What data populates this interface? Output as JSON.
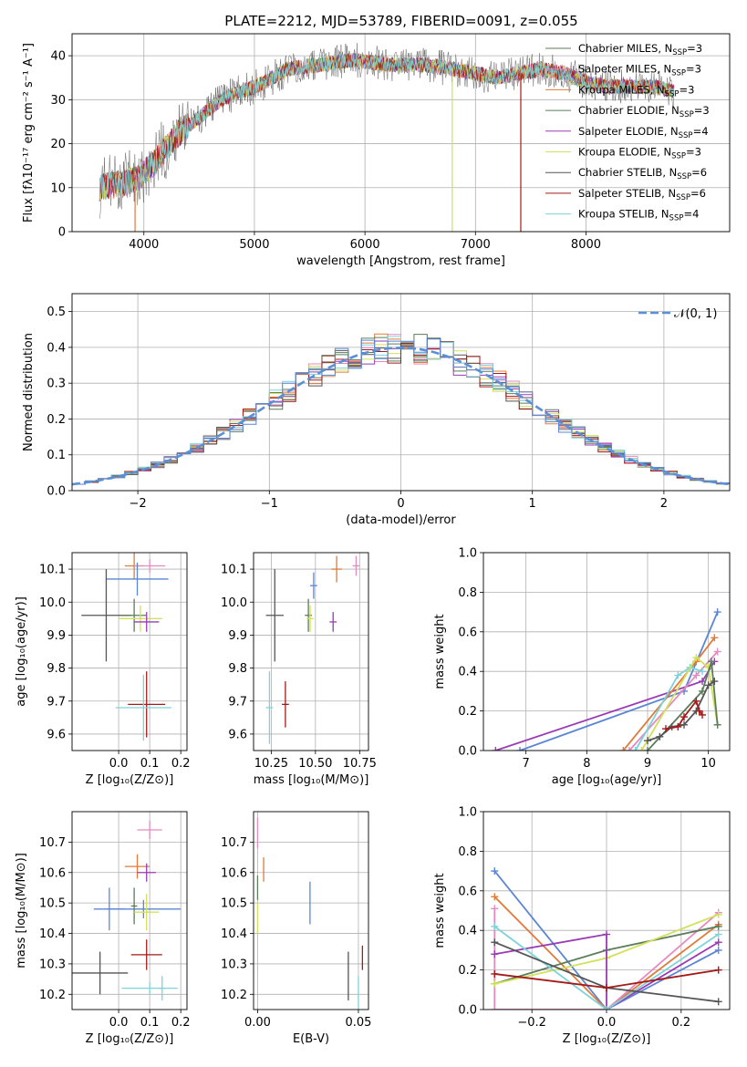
{
  "title": "PLATE=2212, MJD=53789, FIBERID=0091, z=0.055",
  "colors": {
    "Chabrier MILES": "#5a7d5a",
    "Salpeter MILES": "#b0b0b0",
    "Kroupa MILES": "#e07b39",
    "Chabrier ELODIE": "#5a7d5a",
    "Salpeter ELODIE": "#9a3bb5",
    "Kroupa ELODIE": "#d2e05a",
    "Chabrier STELIB": "#555555",
    "Salpeter STELIB": "#a31a1a",
    "Kroupa STELIB": "#7dd3d8",
    "pink": "#e58ac0",
    "blue": "#5b86d6",
    "normal": "#5b8fd6"
  },
  "chart_data": [
    {
      "id": "spectrum",
      "type": "line",
      "xlabel": "wavelength [Angstrom, rest frame]",
      "ylabel": "Flux [fλ10⁻¹⁷ erg cm⁻² s⁻¹ A⁻¹]",
      "xlim": [
        3350,
        9300
      ],
      "ylim": [
        0,
        45
      ],
      "xticks": [
        4000,
        5000,
        6000,
        7000,
        8000
      ],
      "yticks": [
        0,
        10,
        20,
        30,
        40
      ],
      "legend_position": "top-right",
      "continuum": [
        [
          3600,
          10
        ],
        [
          3800,
          11
        ],
        [
          3950,
          12
        ],
        [
          4100,
          16
        ],
        [
          4300,
          22
        ],
        [
          4500,
          26
        ],
        [
          4700,
          30
        ],
        [
          4900,
          32
        ],
        [
          5100,
          34
        ],
        [
          5300,
          37
        ],
        [
          5600,
          38
        ],
        [
          5900,
          39
        ],
        [
          6200,
          38
        ],
        [
          6500,
          38
        ],
        [
          6800,
          37
        ],
        [
          7000,
          36
        ],
        [
          7200,
          35
        ],
        [
          7400,
          36
        ],
        [
          7600,
          37
        ],
        [
          7800,
          36
        ],
        [
          8000,
          34
        ],
        [
          8200,
          33
        ],
        [
          8400,
          33
        ],
        [
          8600,
          33
        ],
        [
          8800,
          32
        ]
      ],
      "series": [
        {
          "name": "Chabrier MILES, N_SSP=3",
          "legend_base": "Chabrier MILES, N",
          "legend_sub": "SSP",
          "legend_tail": "=3",
          "color": "#5a7d5a"
        },
        {
          "name": "Salpeter MILES, N_SSP=3",
          "legend_base": "Salpeter MILES, N",
          "legend_sub": "SSP",
          "legend_tail": "=3",
          "color": "#e58ac0"
        },
        {
          "name": "Kroupa MILES, N_SSP=3",
          "legend_base": "Kroupa MILES, N",
          "legend_sub": "SSP",
          "legend_tail": "=3",
          "color": "#e07b39"
        },
        {
          "name": "Chabrier ELODIE, N_SSP=3",
          "legend_base": "Chabrier ELODIE, N",
          "legend_sub": "SSP",
          "legend_tail": "=3",
          "color": "#5a7d5a"
        },
        {
          "name": "Salpeter ELODIE, N_SSP=4",
          "legend_base": "Salpeter ELODIE, N",
          "legend_sub": "SSP",
          "legend_tail": "=4",
          "color": "#9a3bb5"
        },
        {
          "name": "Kroupa ELODIE, N_SSP=3",
          "legend_base": "Kroupa ELODIE, N",
          "legend_sub": "SSP",
          "legend_tail": "=3",
          "color": "#d2e05a"
        },
        {
          "name": "Chabrier STELIB, N_SSP=6",
          "legend_base": "Chabrier STELIB, N",
          "legend_sub": "SSP",
          "legend_tail": "=6",
          "color": "#555555"
        },
        {
          "name": "Salpeter STELIB, N_SSP=6",
          "legend_base": "Salpeter STELIB, N",
          "legend_sub": "SSP",
          "legend_tail": "=6",
          "color": "#a31a1a"
        },
        {
          "name": "Kroupa STELIB, N_SSP=4",
          "legend_base": "Kroupa STELIB, N",
          "legend_sub": "SSP",
          "legend_tail": "=4",
          "color": "#7dd3d8"
        }
      ]
    },
    {
      "id": "residuals",
      "type": "line",
      "xlabel": "(data-model)/error",
      "ylabel": "Normed distribution",
      "xlim": [
        -2.5,
        2.5
      ],
      "ylim": [
        0,
        0.55
      ],
      "xticks": [
        -2,
        -1,
        0,
        1,
        2
      ],
      "xtick_labels": [
        "−2",
        "−1",
        "0",
        "1",
        "2"
      ],
      "yticks": [
        0.0,
        0.1,
        0.2,
        0.3,
        0.4,
        0.5
      ],
      "ytick_labels": [
        "0.0",
        "0.1",
        "0.2",
        "0.3",
        "0.4",
        "0.5"
      ],
      "legend_label": "𝒩(0, 1)",
      "legend_position": "top-right",
      "bin_width": 0.1,
      "hist_colors": [
        "#5a7d5a",
        "#e58ac0",
        "#e07b39",
        "#5a7d5a",
        "#9a3bb5",
        "#d2e05a",
        "#555555",
        "#a31a1a",
        "#7dd3d8",
        "#5b86d6"
      ]
    },
    {
      "id": "age-vs-Z",
      "type": "scatter",
      "xlabel": "Z [log₁₀(Z/Z⊙)]",
      "ylabel": "age  [log₁₀(age/yr)]",
      "xlim": [
        -0.15,
        0.22
      ],
      "ylim": [
        9.55,
        10.15
      ],
      "xticks": [
        0.0,
        0.1,
        0.2
      ],
      "xtick_labels": [
        "0.0",
        "0.1",
        "0.2"
      ],
      "yticks": [
        9.6,
        9.7,
        9.8,
        9.9,
        10.0,
        10.1
      ],
      "ytick_labels": [
        "9.6",
        "9.7",
        "9.8",
        "9.9",
        "10.0",
        "10.1"
      ],
      "points": [
        {
          "x": 0.05,
          "y": 10.11,
          "xerr": 0.03,
          "yerr": 0.04,
          "color": "#e07b39"
        },
        {
          "x": 0.1,
          "y": 10.11,
          "xerr": 0.05,
          "yerr": 0.02,
          "color": "#e58ac0"
        },
        {
          "x": 0.06,
          "y": 10.07,
          "xerr": 0.1,
          "yerr": 0.05,
          "color": "#5b86d6"
        },
        {
          "x": -0.04,
          "y": 9.96,
          "xerr": 0.08,
          "yerr": 0.14,
          "color": "#555555"
        },
        {
          "x": 0.05,
          "y": 9.96,
          "xerr": 0.04,
          "yerr": 0.05,
          "color": "#5a7d5a"
        },
        {
          "x": 0.07,
          "y": 9.95,
          "xerr": 0.07,
          "yerr": 0.04,
          "color": "#d2e05a"
        },
        {
          "x": 0.09,
          "y": 9.94,
          "xerr": 0.04,
          "yerr": 0.03,
          "color": "#9a3bb5"
        },
        {
          "x": 0.09,
          "y": 9.69,
          "xerr": 0.06,
          "yerr": 0.1,
          "color": "#a31a1a"
        },
        {
          "x": 0.08,
          "y": 9.68,
          "xerr": 0.09,
          "yerr": 0.1,
          "color": "#7dd3d8"
        }
      ]
    },
    {
      "id": "age-vs-mass",
      "type": "scatter",
      "xlabel": "mass [log₁₀(M/M⊙)]",
      "xlim": [
        10.15,
        10.8
      ],
      "ylim": [
        9.55,
        10.15
      ],
      "xticks": [
        10.25,
        10.5,
        10.75
      ],
      "xtick_labels": [
        "10.25",
        "10.50",
        "10.75"
      ],
      "yticks": [
        9.6,
        9.7,
        9.8,
        9.9,
        10.0,
        10.1
      ],
      "ytick_labels": [
        "9.6",
        "9.7",
        "9.8",
        "9.9",
        "10.0",
        "10.1"
      ],
      "points": [
        {
          "x": 10.62,
          "y": 10.1,
          "xerr": 0.03,
          "yerr": 0.04,
          "color": "#e07b39"
        },
        {
          "x": 10.73,
          "y": 10.11,
          "xerr": 0.02,
          "yerr": 0.03,
          "color": "#e58ac0"
        },
        {
          "x": 10.49,
          "y": 10.05,
          "xerr": 0.02,
          "yerr": 0.04,
          "color": "#5b86d6"
        },
        {
          "x": 10.27,
          "y": 9.96,
          "xerr": 0.05,
          "yerr": 0.14,
          "color": "#555555"
        },
        {
          "x": 10.46,
          "y": 9.96,
          "xerr": 0.02,
          "yerr": 0.05,
          "color": "#5a7d5a"
        },
        {
          "x": 10.47,
          "y": 9.95,
          "xerr": 0.02,
          "yerr": 0.04,
          "color": "#d2e05a"
        },
        {
          "x": 10.6,
          "y": 9.94,
          "xerr": 0.02,
          "yerr": 0.03,
          "color": "#9a3bb5"
        },
        {
          "x": 10.33,
          "y": 9.69,
          "xerr": 0.02,
          "yerr": 0.07,
          "color": "#a31a1a"
        },
        {
          "x": 10.24,
          "y": 9.68,
          "xerr": 0.02,
          "yerr": 0.11,
          "color": "#7dd3d8"
        }
      ]
    },
    {
      "id": "massweight-vs-age",
      "type": "line",
      "xlabel": "age  [log₁₀(age/yr)]",
      "ylabel": "mass weight",
      "xlim": [
        6.3,
        10.35
      ],
      "ylim": [
        0,
        1
      ],
      "xticks": [
        7,
        8,
        9,
        10
      ],
      "yticks": [
        0.0,
        0.2,
        0.4,
        0.6,
        0.8,
        1.0
      ],
      "ytick_labels": [
        "0.0",
        "0.2",
        "0.4",
        "0.6",
        "0.8",
        "1.0"
      ],
      "series": [
        {
          "color": "#5b86d6",
          "x": [
            6.9,
            9.6,
            10.15
          ],
          "y": [
            0.0,
            0.3,
            0.7
          ]
        },
        {
          "color": "#9a3bb5",
          "x": [
            6.5,
            9.9,
            10.1
          ],
          "y": [
            0.0,
            0.35,
            0.45
          ]
        },
        {
          "color": "#e07b39",
          "x": [
            8.6,
            9.8,
            10.1
          ],
          "y": [
            0.0,
            0.45,
            0.57
          ]
        },
        {
          "color": "#e58ac0",
          "x": [
            8.7,
            9.8,
            10.15
          ],
          "y": [
            0.0,
            0.38,
            0.5
          ]
        },
        {
          "color": "#7dd3d8",
          "x": [
            8.8,
            9.5,
            9.7,
            9.9
          ],
          "y": [
            0.0,
            0.38,
            0.42,
            0.4
          ]
        },
        {
          "color": "#d2e05a",
          "x": [
            8.9,
            9.8,
            10.0,
            10.15
          ],
          "y": [
            0.0,
            0.47,
            0.42,
            0.13
          ]
        },
        {
          "color": "#5a7d5a",
          "x": [
            9.0,
            9.9,
            10.05,
            10.15
          ],
          "y": [
            0.0,
            0.3,
            0.45,
            0.13
          ]
        },
        {
          "color": "#555555",
          "x": [
            9.0,
            9.2,
            9.4,
            9.6,
            9.8,
            10.0,
            10.1
          ],
          "y": [
            0.05,
            0.07,
            0.12,
            0.13,
            0.2,
            0.33,
            0.35
          ]
        },
        {
          "color": "#a31a1a",
          "x": [
            9.3,
            9.5,
            9.6,
            9.8,
            9.85,
            9.9
          ],
          "y": [
            0.11,
            0.12,
            0.17,
            0.25,
            0.2,
            0.18
          ]
        }
      ]
    },
    {
      "id": "mass-vs-Z",
      "type": "scatter",
      "xlabel": "Z [log₁₀(Z/Z⊙)]",
      "ylabel": "mass [log₁₀(M/M⊙)]",
      "xlim": [
        -0.15,
        0.22
      ],
      "ylim": [
        10.15,
        10.8
      ],
      "xticks": [
        0.0,
        0.1,
        0.2
      ],
      "xtick_labels": [
        "0.0",
        "0.1",
        "0.2"
      ],
      "yticks": [
        10.2,
        10.3,
        10.4,
        10.5,
        10.6,
        10.7
      ],
      "ytick_labels": [
        "10.2",
        "10.3",
        "10.4",
        "10.5",
        "10.6",
        "10.7"
      ],
      "points": [
        {
          "x": 0.1,
          "y": 10.74,
          "xerr": 0.04,
          "yerr": 0.03,
          "color": "#e58ac0"
        },
        {
          "x": 0.06,
          "y": 10.62,
          "xerr": 0.04,
          "yerr": 0.04,
          "color": "#e07b39"
        },
        {
          "x": 0.09,
          "y": 10.6,
          "xerr": 0.03,
          "yerr": 0.03,
          "color": "#9a3bb5"
        },
        {
          "x": -0.03,
          "y": 10.48,
          "xerr": 0.05,
          "yerr": 0.07,
          "color": "#5b86d6"
        },
        {
          "x": 0.08,
          "y": 10.48,
          "xerr": 0.12,
          "yerr": 0.03,
          "color": "#5b86d6"
        },
        {
          "x": 0.05,
          "y": 10.49,
          "xerr": 0.01,
          "yerr": 0.06,
          "color": "#5a7d5a"
        },
        {
          "x": 0.09,
          "y": 10.47,
          "xerr": 0.04,
          "yerr": 0.06,
          "color": "#d2e05a"
        },
        {
          "x": 0.09,
          "y": 10.33,
          "xerr": 0.05,
          "yerr": 0.05,
          "color": "#a31a1a"
        },
        {
          "x": -0.06,
          "y": 10.27,
          "xerr": 0.09,
          "yerr": 0.07,
          "color": "#555555"
        },
        {
          "x": 0.1,
          "y": 10.22,
          "xerr": 0.09,
          "yerr": 0.02,
          "color": "#7dd3d8"
        },
        {
          "x": 0.14,
          "y": 10.22,
          "xerr": 0.01,
          "yerr": 0.04,
          "color": "#7dd3d8"
        }
      ]
    },
    {
      "id": "mass-vs-EBV",
      "type": "scatter",
      "xlabel": "E(B-V)",
      "xlim": [
        -0.002,
        0.055
      ],
      "ylim": [
        10.15,
        10.8
      ],
      "xticks": [
        0.0,
        0.05
      ],
      "xtick_labels": [
        "0.00",
        "0.05"
      ],
      "yticks": [
        10.2,
        10.3,
        10.4,
        10.5,
        10.6,
        10.7
      ],
      "ytick_labels": [
        "10.2",
        "10.3",
        "10.4",
        "10.5",
        "10.6",
        "10.7"
      ],
      "points": [
        {
          "x": 0.0,
          "y": 10.73,
          "xerr": 0.0,
          "yerr": 0.05,
          "color": "#e58ac0"
        },
        {
          "x": 0.003,
          "y": 10.61,
          "xerr": 0.0,
          "yerr": 0.04,
          "color": "#e07b39"
        },
        {
          "x": 0.0,
          "y": 10.55,
          "xerr": 0.0,
          "yerr": 0.04,
          "color": "#5a7d5a"
        },
        {
          "x": 0.0,
          "y": 10.45,
          "xerr": 0.0,
          "yerr": 0.05,
          "color": "#d2e05a"
        },
        {
          "x": 0.026,
          "y": 10.5,
          "xerr": 0.0,
          "yerr": 0.07,
          "color": "#5b86d6"
        },
        {
          "x": 0.052,
          "y": 10.32,
          "xerr": 0.0,
          "yerr": 0.04,
          "color": "#a31a1a"
        },
        {
          "x": 0.045,
          "y": 10.26,
          "xerr": 0.0,
          "yerr": 0.08,
          "color": "#555555"
        },
        {
          "x": 0.05,
          "y": 10.2,
          "xerr": 0.0,
          "yerr": 0.06,
          "color": "#7dd3d8"
        }
      ]
    },
    {
      "id": "massweight-vs-Z",
      "type": "line",
      "xlabel": "Z [log₁₀(Z/Z⊙)]",
      "ylabel": "mass weight",
      "xlim": [
        -0.33,
        0.33
      ],
      "ylim": [
        0,
        1
      ],
      "xticks": [
        -0.2,
        0.0,
        0.2
      ],
      "xtick_labels": [
        "−0.2",
        "0.0",
        "0.2"
      ],
      "yticks": [
        0.0,
        0.2,
        0.4,
        0.6,
        0.8,
        1.0
      ],
      "ytick_labels": [
        "0.0",
        "0.2",
        "0.4",
        "0.6",
        "0.8",
        "1.0"
      ],
      "series": [
        {
          "color": "#5b86d6",
          "x": [
            -0.3,
            0.0,
            0.3
          ],
          "y": [
            0.7,
            0.0,
            0.3
          ]
        },
        {
          "color": "#e07b39",
          "x": [
            -0.3,
            0.0,
            0.3
          ],
          "y": [
            0.57,
            0.0,
            0.43
          ]
        },
        {
          "color": "#e58ac0",
          "x": [
            -0.3,
            -0.3,
            0.0,
            0.3
          ],
          "y": [
            0.51,
            0.0,
            0.0,
            0.49
          ]
        },
        {
          "color": "#5a7d5a",
          "x": [
            -0.3,
            0.0,
            0.3
          ],
          "y": [
            0.13,
            0.3,
            0.42
          ]
        },
        {
          "color": "#d2e05a",
          "x": [
            -0.3,
            0.0,
            0.3
          ],
          "y": [
            0.13,
            0.26,
            0.48
          ]
        },
        {
          "color": "#9a3bb5",
          "x": [
            -0.3,
            0.0,
            0.0,
            0.3
          ],
          "y": [
            0.28,
            0.38,
            0.0,
            0.34
          ]
        },
        {
          "color": "#7dd3d8",
          "x": [
            -0.3,
            0.0,
            0.3
          ],
          "y": [
            0.42,
            0.0,
            0.38
          ]
        },
        {
          "color": "#555555",
          "x": [
            -0.3,
            0.0,
            0.3
          ],
          "y": [
            0.34,
            0.11,
            0.04
          ]
        },
        {
          "color": "#a31a1a",
          "x": [
            -0.3,
            0.0,
            0.3
          ],
          "y": [
            0.18,
            0.11,
            0.2
          ]
        }
      ]
    }
  ]
}
